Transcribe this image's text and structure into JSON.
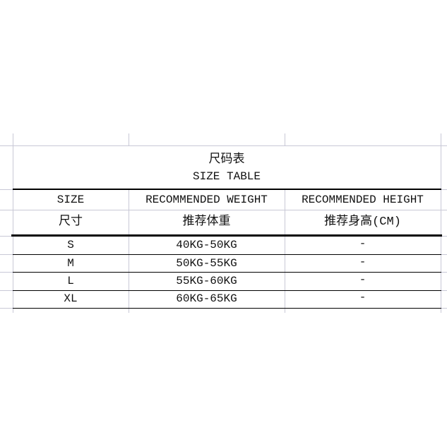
{
  "title_cn": "尺码表",
  "title_en": "SIZE TABLE",
  "headers": [
    {
      "en": "SIZE",
      "cn": "尺寸"
    },
    {
      "en": "RECOMMENDED WEIGHT",
      "cn": "推荐体重"
    },
    {
      "en": "RECOMMENDED HEIGHT",
      "cn": "推荐身高(CM)"
    }
  ],
  "rows": [
    {
      "size": "S",
      "weight": "40KG-50KG",
      "height": "-"
    },
    {
      "size": "M",
      "weight": "50KG-55KG",
      "height": "-"
    },
    {
      "size": "L",
      "weight": "55KG-60KG",
      "height": "-"
    },
    {
      "size": "XL",
      "weight": "60KG-65KG",
      "height": "-"
    }
  ],
  "colors": {
    "gridline": "#c8c8d6",
    "border": "#000000"
  }
}
